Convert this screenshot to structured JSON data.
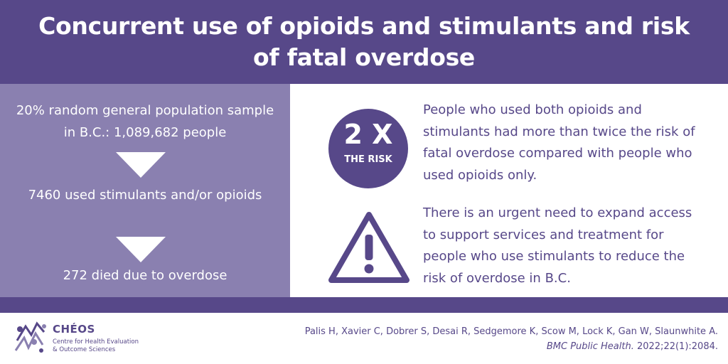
{
  "header": {
    "title": "Concurrent use of opioids and stimulants and risk of fatal overdose"
  },
  "flow": {
    "step1": "20% random general population sample in B.C.: 1,089,682 people",
    "step2": "7460 used stimulants and/or opioids",
    "step3": "272 died due to overdose"
  },
  "risk": {
    "badge_value": "2 X",
    "badge_label": "THE RISK",
    "finding": "People who used both opioids and stimulants had more than twice the risk of fatal overdose compared with people who used opioids only."
  },
  "warning": {
    "text": "There is an urgent need to expand access to support services and treatment for people who use stimulants to reduce the risk of overdose in B.C."
  },
  "logo": {
    "name": "CHÉOS",
    "line1": "Centre for Health Evaluation",
    "line2": "& Outcome Sciences"
  },
  "citation": {
    "authors": "Palis H, Xavier C, Dobrer S, Desai R, Sedgemore K, Scow M, Lock K, Gan W, Slaunwhite A.",
    "journal": "BMC Public Health.",
    "ref": " 2022;22(1):2084."
  },
  "colors": {
    "primary": "#574889",
    "panel": "#8a80b0",
    "white": "#ffffff"
  },
  "icons": [
    "down-arrow-icon",
    "warning-triangle-icon",
    "cheos-logo-icon"
  ]
}
